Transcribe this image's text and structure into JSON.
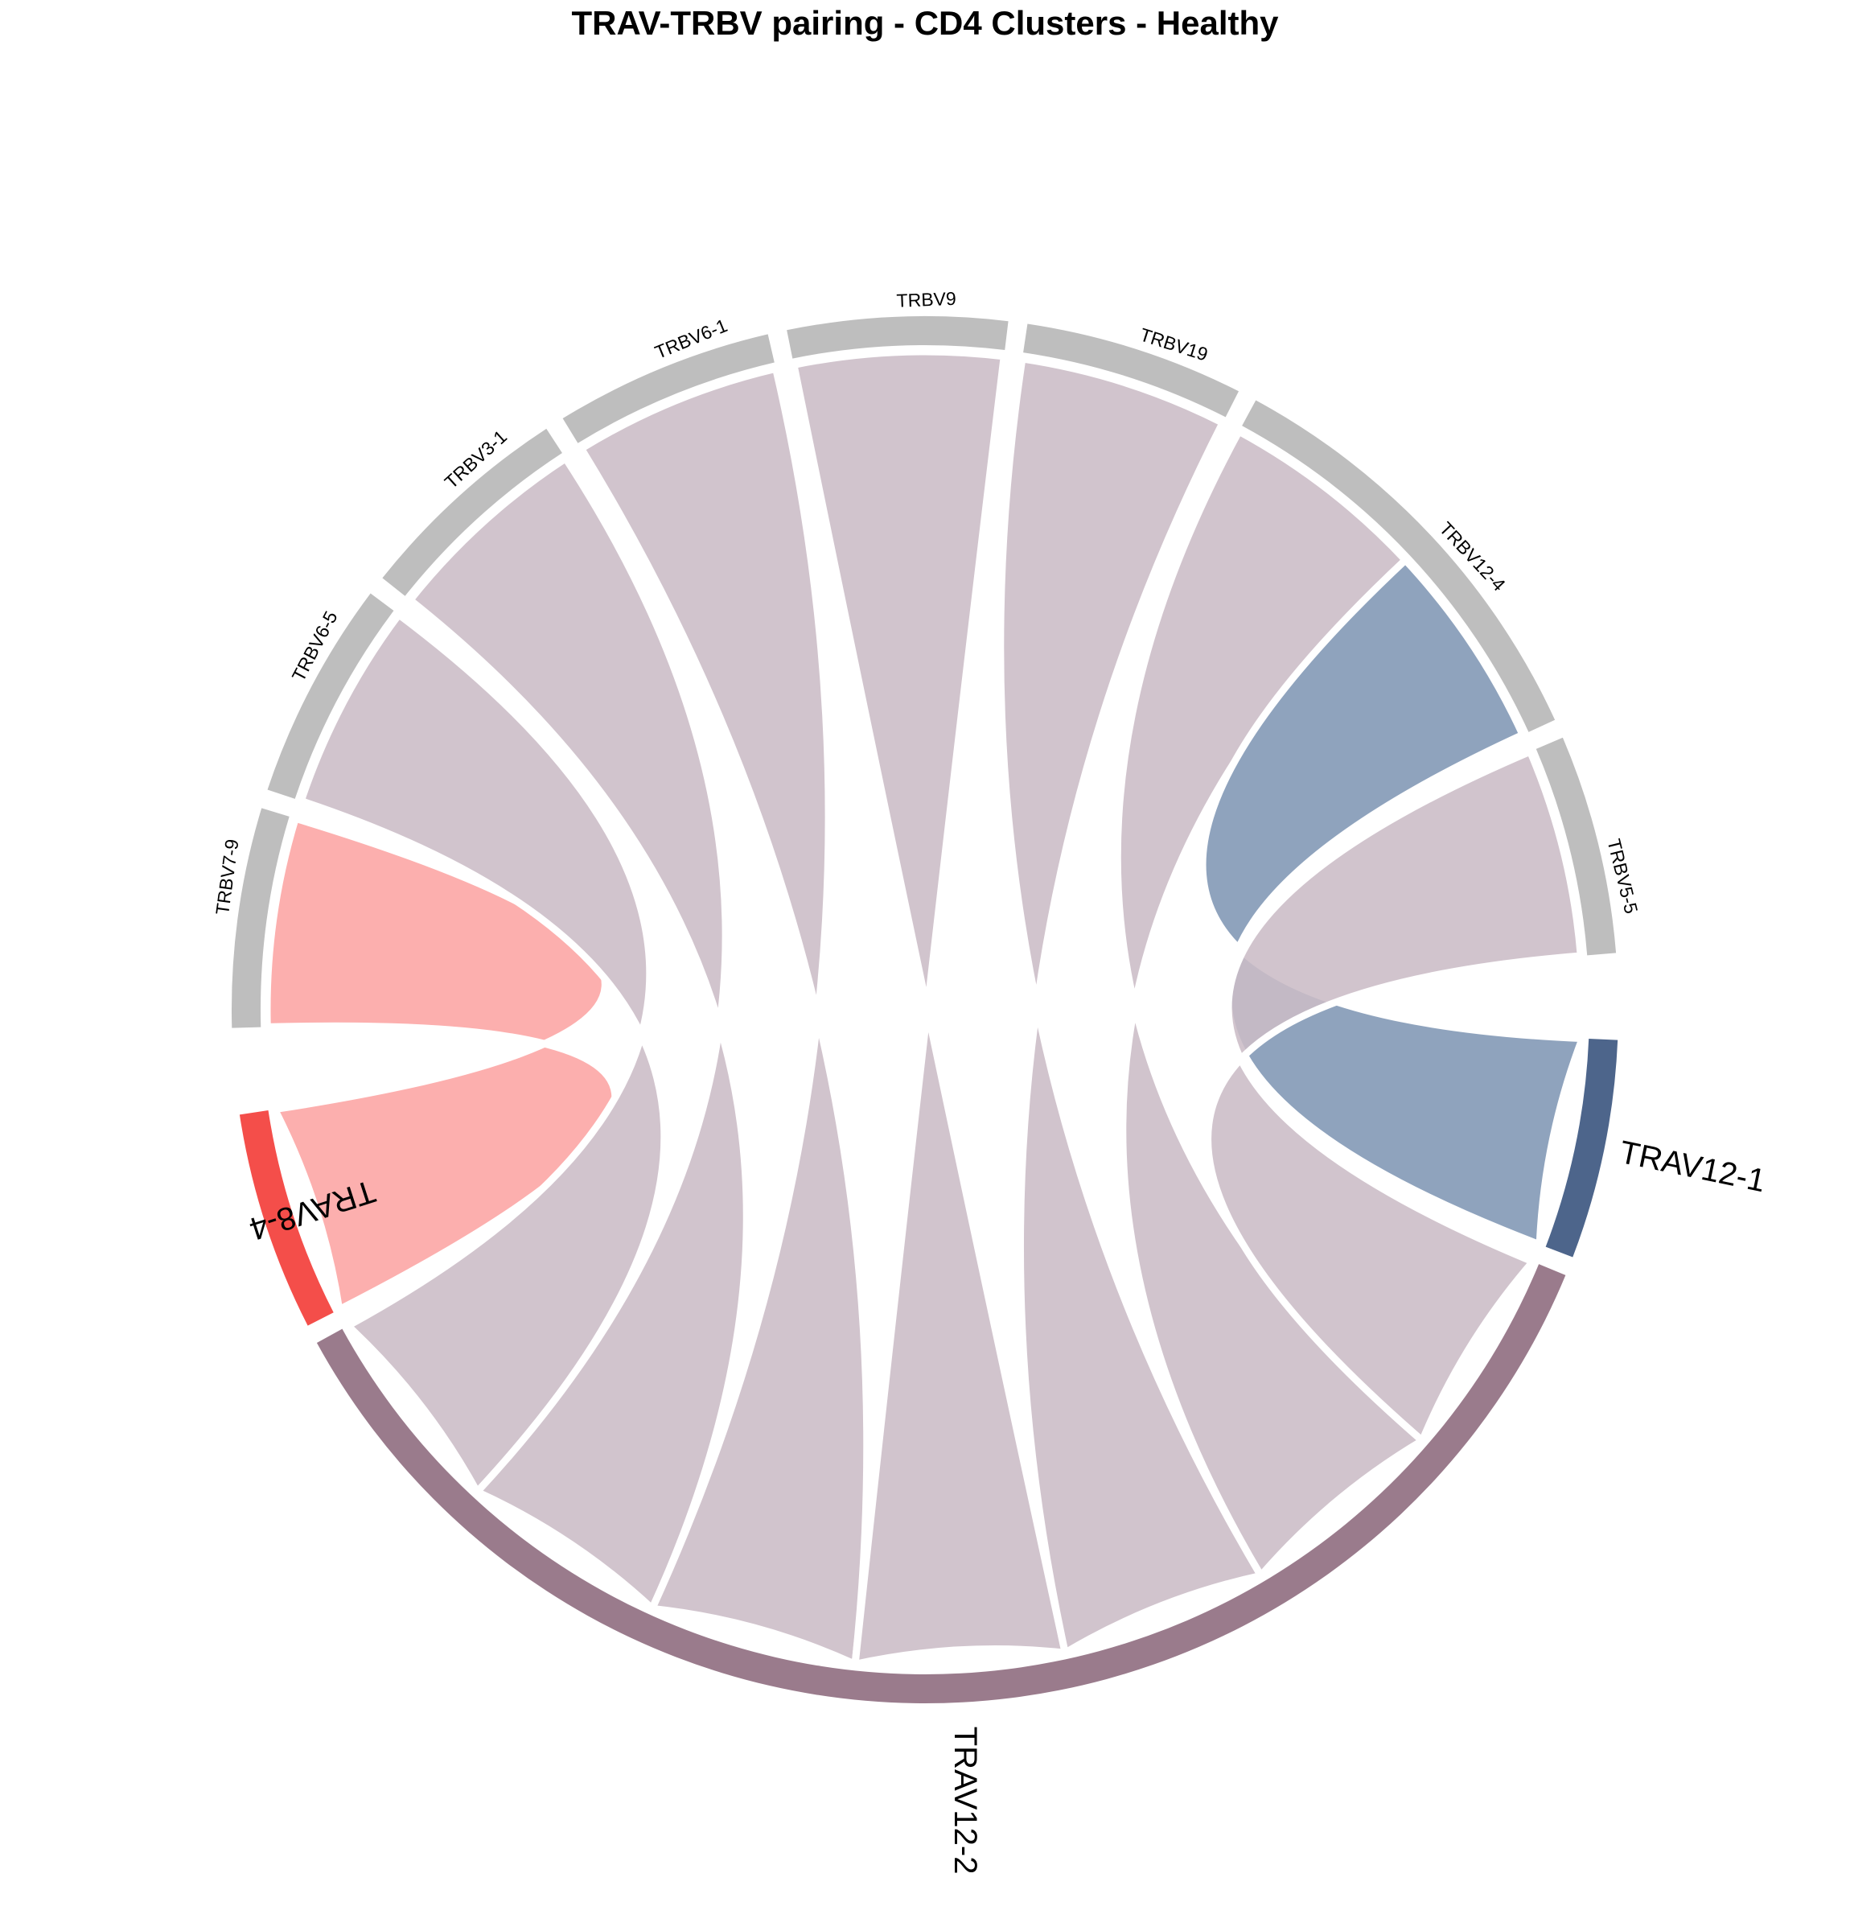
{
  "chart_data": {
    "type": "chord",
    "title": "TRAV-TRBV pairing - CD4 Clusters - Healthy",
    "sectors": [
      {
        "name": "TRBV7-9",
        "group": "TRBV",
        "size": 1,
        "color": "#bebebe"
      },
      {
        "name": "TRBV6-5",
        "group": "TRBV",
        "size": 1,
        "color": "#bebebe"
      },
      {
        "name": "TRBV3-1",
        "group": "TRBV",
        "size": 1,
        "color": "#bebebe"
      },
      {
        "name": "TRBV6-1",
        "group": "TRBV",
        "size": 1,
        "color": "#bebebe"
      },
      {
        "name": "TRBV9",
        "group": "TRBV",
        "size": 1,
        "color": "#bebebe"
      },
      {
        "name": "TRBV19",
        "group": "TRBV",
        "size": 1,
        "color": "#bebebe"
      },
      {
        "name": "TRBV12-4",
        "group": "TRBV",
        "size": 2,
        "color": "#bebebe"
      },
      {
        "name": "TRBV5-5",
        "group": "TRBV",
        "size": 1,
        "color": "#bebebe"
      },
      {
        "name": "TRAV12-1",
        "group": "TRAV",
        "size": 1,
        "color": "#4d658b"
      },
      {
        "name": "TRAV12-2",
        "group": "TRAV",
        "size": 7,
        "color": "#9a7b8c"
      },
      {
        "name": "TRAV8-4",
        "group": "TRAV",
        "size": 1,
        "color": "#f44e4a"
      }
    ],
    "links": [
      {
        "from": "TRAV8-4",
        "to": "TRBV7-9",
        "value": 1,
        "color": "#fca4a3"
      },
      {
        "from": "TRAV12-2",
        "to": "TRBV6-5",
        "value": 1,
        "color": "#cbbcc6"
      },
      {
        "from": "TRAV12-2",
        "to": "TRBV3-1",
        "value": 1,
        "color": "#cbbcc6"
      },
      {
        "from": "TRAV12-2",
        "to": "TRBV6-1",
        "value": 1,
        "color": "#cbbcc6"
      },
      {
        "from": "TRAV12-2",
        "to": "TRBV9",
        "value": 1,
        "color": "#cbbcc6"
      },
      {
        "from": "TRAV12-2",
        "to": "TRBV19",
        "value": 1,
        "color": "#cbbcc6"
      },
      {
        "from": "TRAV12-2",
        "to": "TRBV12-4",
        "value": 1,
        "color": "#cbbcc6"
      },
      {
        "from": "TRAV12-1",
        "to": "TRBV12-4",
        "value": 1,
        "color": "#8096b4"
      },
      {
        "from": "TRAV12-2",
        "to": "TRBV5-5",
        "value": 1,
        "color": "#cbbcc6"
      }
    ]
  }
}
